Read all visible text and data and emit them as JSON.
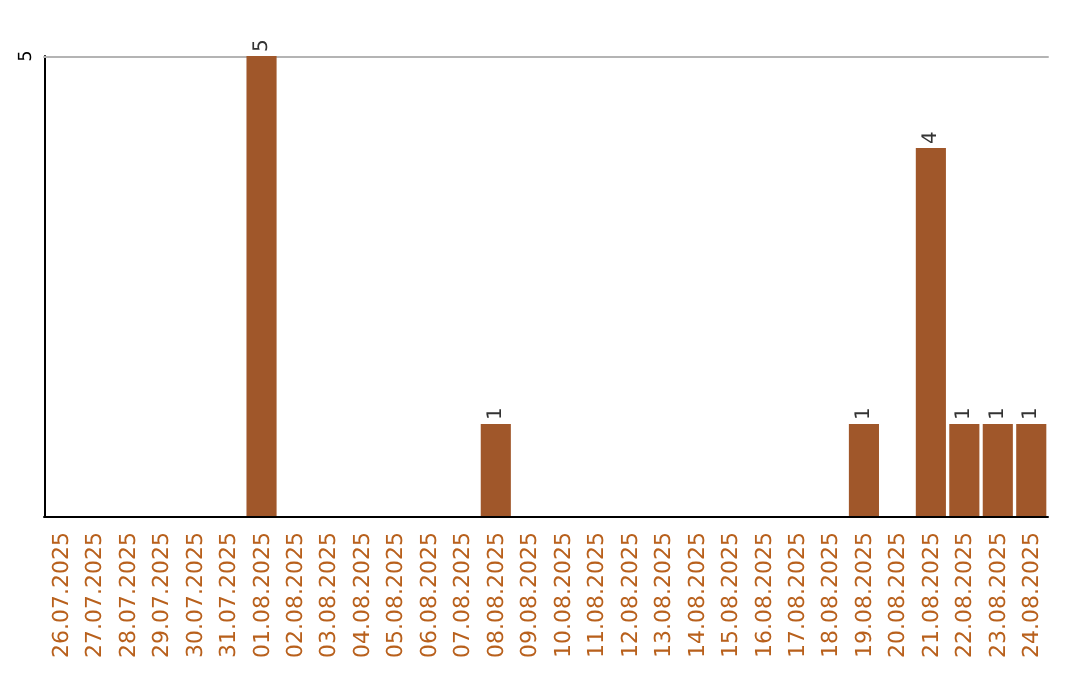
{
  "chart_data": {
    "type": "bar",
    "categories": [
      "26.07.2025",
      "27.07.2025",
      "28.07.2025",
      "29.07.2025",
      "30.07.2025",
      "31.07.2025",
      "01.08.2025",
      "02.08.2025",
      "03.08.2025",
      "04.08.2025",
      "05.08.2025",
      "06.08.2025",
      "07.08.2025",
      "08.08.2025",
      "09.08.2025",
      "10.08.2025",
      "11.08.2025",
      "12.08.2025",
      "13.08.2025",
      "14.08.2025",
      "15.08.2025",
      "16.08.2025",
      "17.08.2025",
      "18.08.2025",
      "19.08.2025",
      "20.08.2025",
      "21.08.2025",
      "22.08.2025",
      "23.08.2025",
      "24.08.2025"
    ],
    "values": [
      0,
      0,
      0,
      0,
      0,
      0,
      5,
      0,
      0,
      0,
      0,
      0,
      0,
      1,
      0,
      0,
      0,
      0,
      0,
      0,
      0,
      0,
      0,
      0,
      1,
      0,
      4,
      1,
      1,
      1
    ],
    "value_labels": [
      null,
      null,
      null,
      null,
      null,
      null,
      "5",
      null,
      null,
      null,
      null,
      null,
      null,
      "1",
      null,
      null,
      null,
      null,
      null,
      null,
      null,
      null,
      null,
      null,
      "1",
      null,
      "4",
      "1",
      "1",
      "1"
    ],
    "color": "#a0572a",
    "ylim": [
      0,
      5
    ],
    "yticks": [
      5
    ]
  }
}
